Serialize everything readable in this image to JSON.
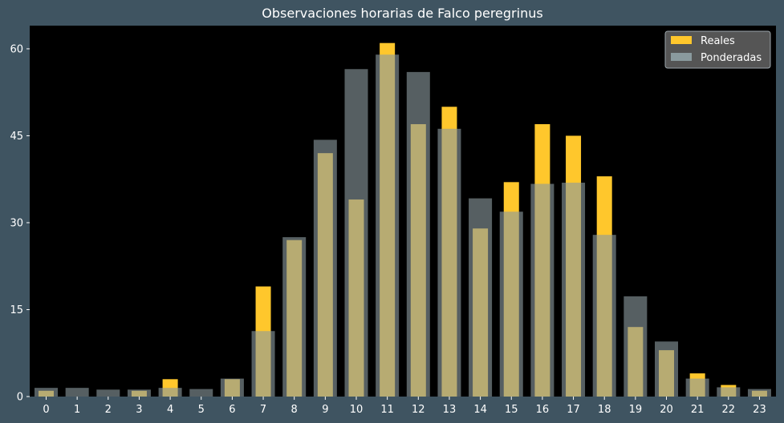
{
  "chart_data": {
    "type": "bar",
    "title": "Observaciones horarias de Falco peregrinus",
    "xlabel": "",
    "ylabel": "",
    "categories": [
      "0",
      "1",
      "2",
      "3",
      "4",
      "5",
      "6",
      "7",
      "8",
      "9",
      "10",
      "11",
      "12",
      "13",
      "14",
      "15",
      "16",
      "17",
      "18",
      "19",
      "20",
      "21",
      "22",
      "23"
    ],
    "yticks": [
      "0",
      "15",
      "30",
      "45",
      "60"
    ],
    "ylim": [
      0,
      64
    ],
    "grid": false,
    "legend_position": "top-right",
    "series": [
      {
        "name": "Reales",
        "color": "#ffc72c",
        "values": [
          1,
          0,
          0,
          1,
          3,
          0,
          3,
          19,
          27,
          42,
          34,
          61,
          47,
          50,
          29,
          37,
          47,
          45,
          38,
          12,
          8,
          4,
          2,
          1
        ]
      },
      {
        "name": "Ponderadas",
        "color": "#8a9a9e",
        "values": [
          1.5,
          1.5,
          1.2,
          1.2,
          1.5,
          1.3,
          3.1,
          11.3,
          27.5,
          44.3,
          56.5,
          59,
          56,
          46.2,
          34.2,
          31.9,
          36.7,
          36.9,
          27.9,
          17.3,
          9.5,
          3.1,
          1.6,
          1.3
        ]
      }
    ]
  }
}
